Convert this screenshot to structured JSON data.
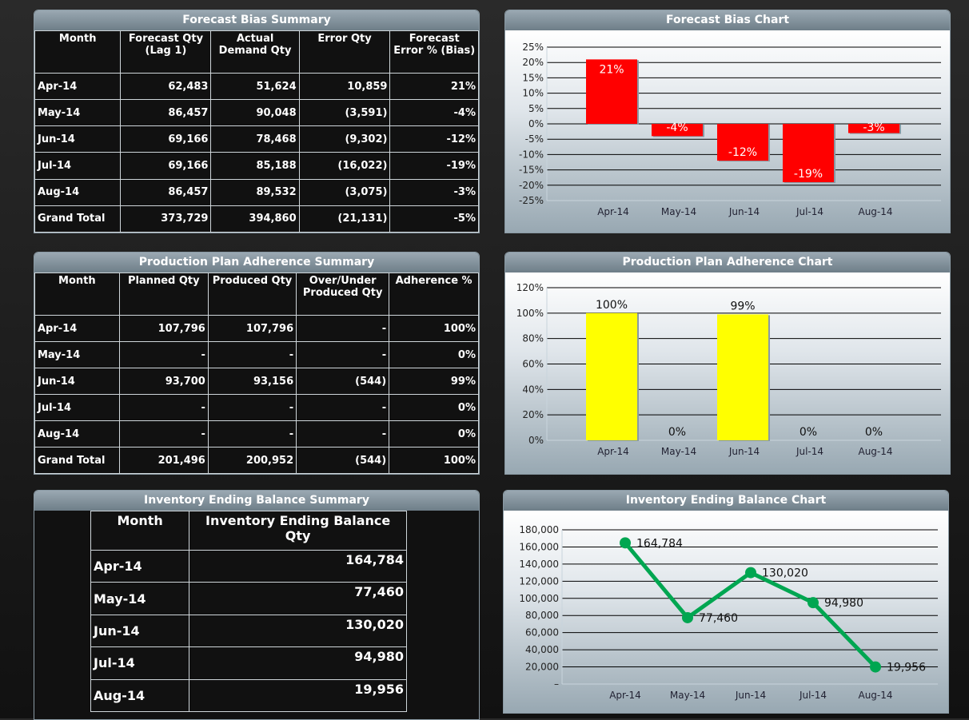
{
  "forecast_bias_summary": {
    "title": "Forecast Bias Summary",
    "headers": [
      "Month",
      "Forecast Qty (Lag 1)",
      "Actual Demand Qty",
      "Error Qty",
      "Forecast Error % (Bias)"
    ],
    "rows": [
      [
        "Apr-14",
        "62,483",
        "51,624",
        "10,859",
        "21%"
      ],
      [
        "May-14",
        "86,457",
        "90,048",
        "(3,591)",
        "-4%"
      ],
      [
        "Jun-14",
        "69,166",
        "78,468",
        "(9,302)",
        "-12%"
      ],
      [
        "Jul-14",
        "69,166",
        "85,188",
        "(16,022)",
        "-19%"
      ],
      [
        "Aug-14",
        "86,457",
        "89,532",
        "(3,075)",
        "-3%"
      ],
      [
        "Grand Total",
        "373,729",
        "394,860",
        "(21,131)",
        "-5%"
      ]
    ]
  },
  "production_summary": {
    "title": "Production Plan Adherence Summary",
    "headers": [
      "Month",
      "Planned Qty",
      "Produced Qty",
      "Over/Under Produced Qty",
      "Adherence %"
    ],
    "rows": [
      [
        "Apr-14",
        "107,796",
        "107,796",
        "-",
        "100%"
      ],
      [
        "May-14",
        "-",
        "-",
        "-",
        "0%"
      ],
      [
        "Jun-14",
        "93,700",
        "93,156",
        "(544)",
        "99%"
      ],
      [
        "Jul-14",
        "-",
        "-",
        "-",
        "0%"
      ],
      [
        "Aug-14",
        "-",
        "-",
        "-",
        "0%"
      ],
      [
        "Grand Total",
        "201,496",
        "200,952",
        "(544)",
        "100%"
      ]
    ]
  },
  "inventory_summary": {
    "title": "Inventory Ending Balance Summary",
    "headers": [
      "Month",
      "Inventory Ending Balance Qty"
    ],
    "rows": [
      [
        "Apr-14",
        "164,784"
      ],
      [
        "May-14",
        "77,460"
      ],
      [
        "Jun-14",
        "130,020"
      ],
      [
        "Jul-14",
        "94,980"
      ],
      [
        "Aug-14",
        "19,956"
      ]
    ]
  },
  "chart_data": [
    {
      "title": "Forecast Bias Chart",
      "type": "bar",
      "categories": [
        "Apr-14",
        "May-14",
        "Jun-14",
        "Jul-14",
        "Aug-14"
      ],
      "values": [
        21,
        -4,
        -12,
        -19,
        -3
      ],
      "labels": [
        "21%",
        "-4%",
        "-12%",
        "-19%",
        "-3%"
      ],
      "ylim": [
        -25,
        25
      ],
      "yticks": [
        "25%",
        "20%",
        "15%",
        "10%",
        "5%",
        "0%",
        "-5%",
        "-10%",
        "-15%",
        "-20%",
        "-25%"
      ],
      "color": "#ff0000",
      "grid": true
    },
    {
      "title": "Production Plan Adherence Chart",
      "type": "bar",
      "categories": [
        "Apr-14",
        "May-14",
        "Jun-14",
        "Jul-14",
        "Aug-14"
      ],
      "values": [
        100,
        0,
        99,
        0,
        0
      ],
      "labels": [
        "100%",
        "0%",
        "99%",
        "0%",
        "0%"
      ],
      "ylim": [
        0,
        120
      ],
      "yticks": [
        "120%",
        "100%",
        "80%",
        "60%",
        "40%",
        "20%",
        "0%"
      ],
      "color": "#ffff00",
      "grid": true
    },
    {
      "title": "Inventory Ending Balance Chart",
      "type": "line",
      "categories": [
        "Apr-14",
        "May-14",
        "Jun-14",
        "Jul-14",
        "Aug-14"
      ],
      "values": [
        164784,
        77460,
        130020,
        94980,
        19956
      ],
      "labels": [
        "164,784",
        "77,460",
        "130,020",
        "94,980",
        "19,956"
      ],
      "ylim": [
        0,
        180000
      ],
      "yticks": [
        "180,000",
        "160,000",
        "140,000",
        "120,000",
        "100,000",
        "80,000",
        "60,000",
        "40,000",
        "20,000",
        "–"
      ],
      "color": "#00a651",
      "grid": true
    }
  ]
}
